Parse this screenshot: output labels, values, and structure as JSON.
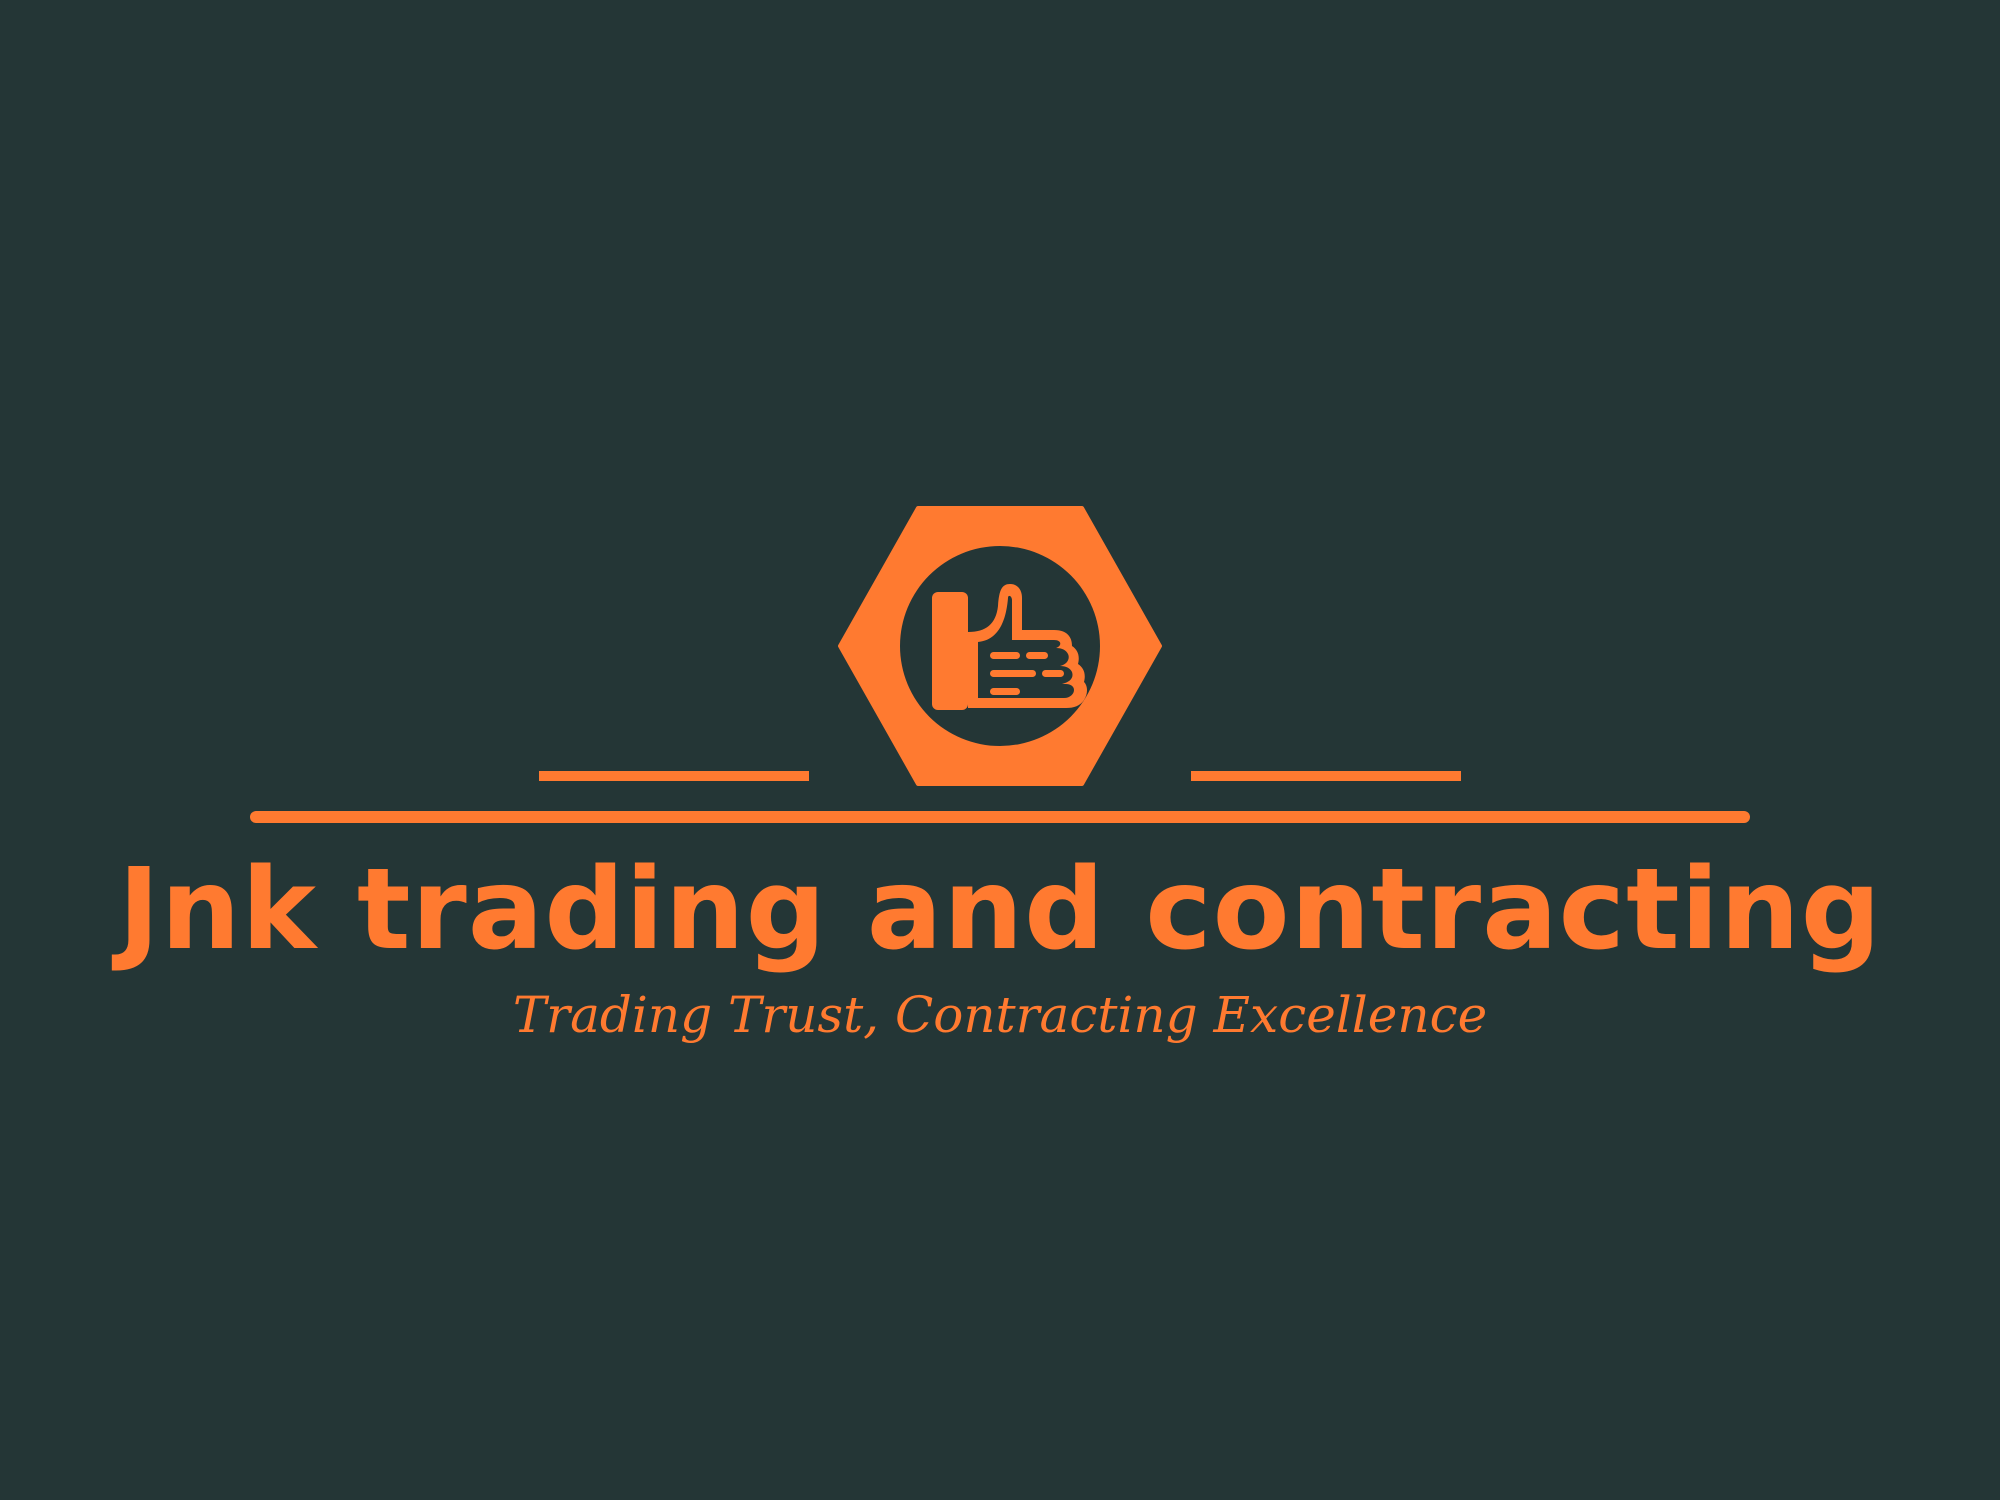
{
  "logo": {
    "company_name": "Jnk trading and contracting",
    "tagline": "Trading Trust, Contracting Excellence",
    "emblem_icon": "thumbs-up-in-hexagon-icon"
  },
  "colors": {
    "background": "#243636",
    "accent": "#FF7A30"
  }
}
